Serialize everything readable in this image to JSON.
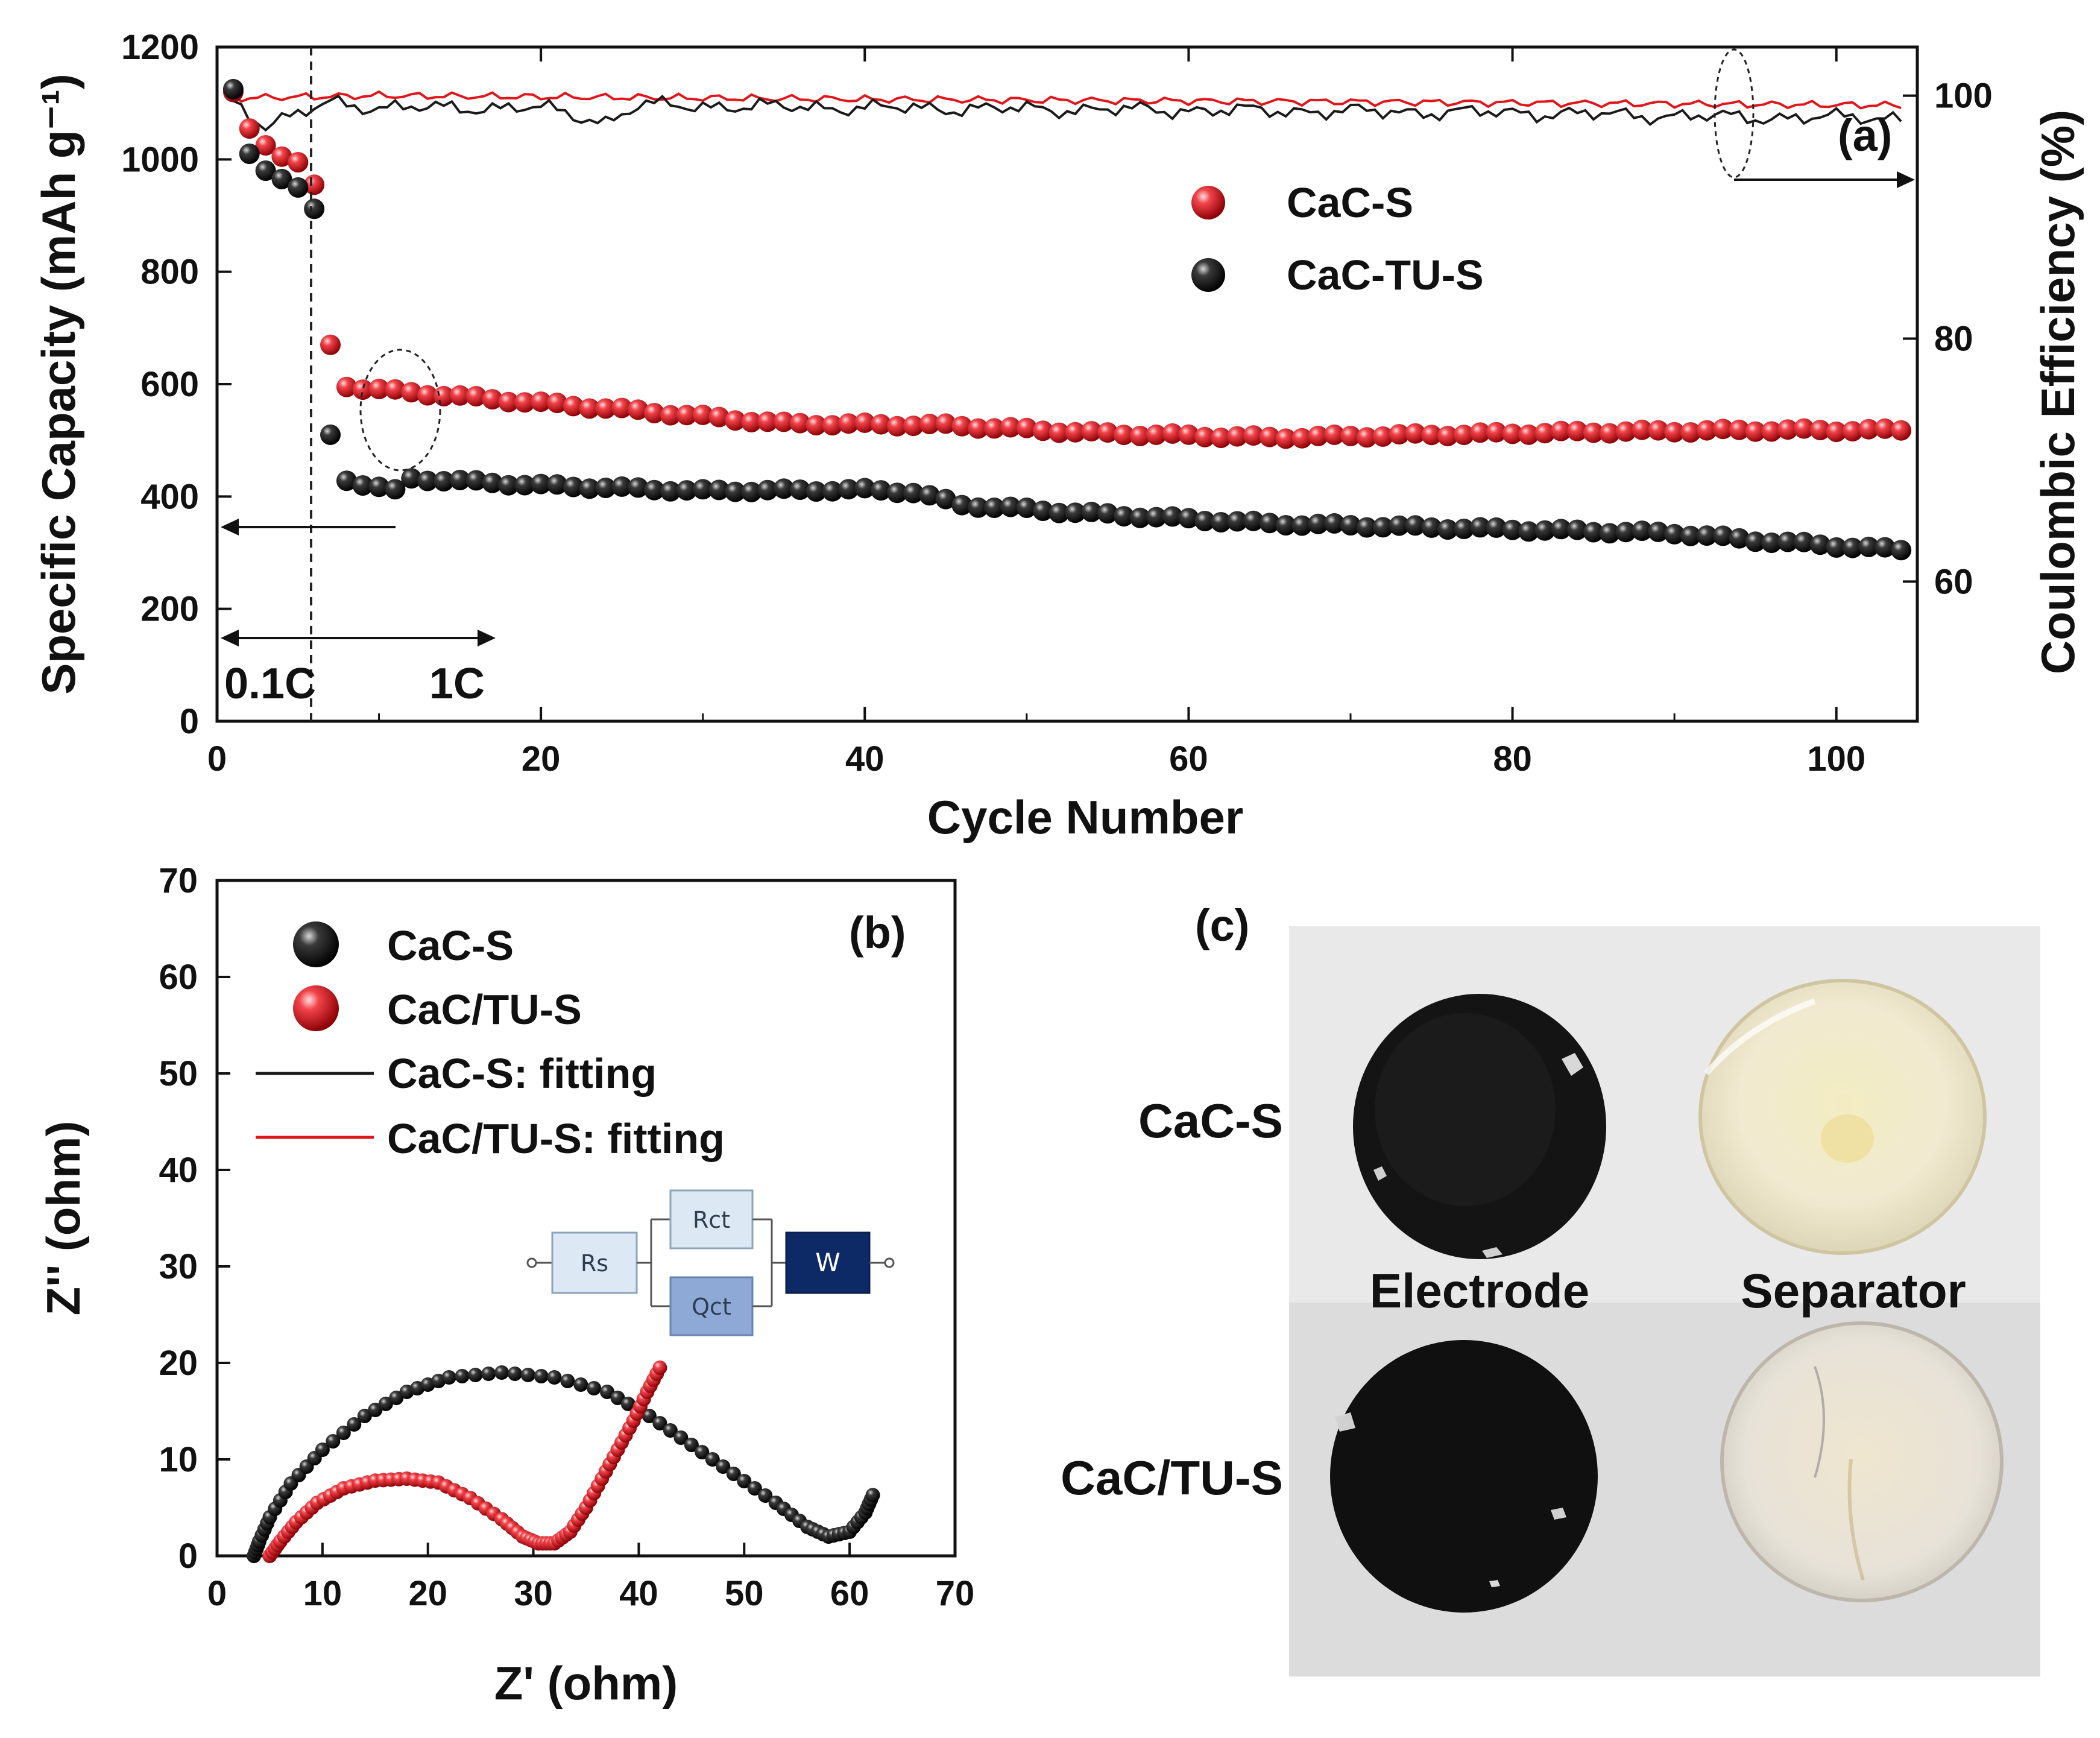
{
  "chart_data": [
    {
      "panel": "(a)",
      "type": "scatter",
      "xlabel": "Cycle Number",
      "ylabel": "Specific Capacity (mAh g⁻¹)",
      "y2label": "Coulombic Efficiency (%)",
      "xlim": [
        0,
        105
      ],
      "ylim": [
        0,
        1200
      ],
      "y2lim": [
        48.5,
        104
      ],
      "xticks": [
        "0",
        "20",
        "40",
        "60",
        "80",
        "100"
      ],
      "yticks": [
        "0",
        "200",
        "400",
        "600",
        "800",
        "1000",
        "1200"
      ],
      "y2ticks": [
        "60",
        "80",
        "100"
      ],
      "rate_labels": [
        "0.1C",
        "1C"
      ],
      "rate_switch_cycle": 6,
      "legend": {
        "position": "upper-right",
        "entries": [
          {
            "label": "CaC-S",
            "color": "#e0161b"
          },
          {
            "label": "CaC-TU-S",
            "color": "#1a1a1a"
          }
        ]
      },
      "series": [
        {
          "name": "CaC-S",
          "color": "#e0161b",
          "capacity_points": [
            [
              1,
              1120
            ],
            [
              2,
              1055
            ],
            [
              3,
              1025
            ],
            [
              4,
              1005
            ],
            [
              5,
              995
            ],
            [
              6,
              955
            ],
            [
              7,
              670
            ],
            [
              8,
              595
            ]
          ],
          "capacity_trend": [
            [
              8,
              595
            ],
            [
              15,
              578
            ],
            [
              25,
              555
            ],
            [
              35,
              530
            ],
            [
              45,
              527
            ],
            [
              55,
              512
            ],
            [
              65,
              505
            ],
            [
              75,
              510
            ],
            [
              85,
              515
            ],
            [
              95,
              518
            ],
            [
              104,
              518
            ]
          ],
          "efficiency_trend": [
            [
              1,
              99.8
            ],
            [
              10,
              100
            ],
            [
              40,
              99.7
            ],
            [
              70,
              99.5
            ],
            [
              104,
              99.2
            ]
          ]
        },
        {
          "name": "CaC-TU-S",
          "color": "#1a1a1a",
          "capacity_points": [
            [
              1,
              1125
            ],
            [
              2,
              1010
            ],
            [
              3,
              980
            ],
            [
              4,
              965
            ],
            [
              5,
              950
            ],
            [
              6,
              912
            ],
            [
              7,
              510
            ],
            [
              8,
              428
            ]
          ],
          "capacity_trend": [
            [
              8,
              428
            ],
            [
              11,
              410
            ],
            [
              12,
              432
            ],
            [
              20,
              420
            ],
            [
              30,
              410
            ],
            [
              40,
              412
            ],
            [
              43,
              408
            ],
            [
              46,
              385
            ],
            [
              55,
              368
            ],
            [
              65,
              352
            ],
            [
              75,
              345
            ],
            [
              85,
              338
            ],
            [
              90,
              335
            ],
            [
              95,
              322
            ],
            [
              100,
              312
            ],
            [
              104,
              305
            ]
          ],
          "efficiency_trend": [
            [
              1,
              99.6
            ],
            [
              3,
              97.5
            ],
            [
              5,
              98.4
            ],
            [
              7,
              99.5
            ],
            [
              10,
              99
            ],
            [
              20,
              99
            ],
            [
              24,
              97.8
            ],
            [
              26,
              99.2
            ],
            [
              40,
              99
            ],
            [
              60,
              98.8
            ],
            [
              80,
              98.6
            ],
            [
              95,
              98.2
            ],
            [
              104,
              98.2
            ]
          ]
        }
      ]
    },
    {
      "panel": "(b)",
      "type": "scatter",
      "xlabel": "Z' (ohm)",
      "ylabel": "Z'' (ohm)",
      "xlim": [
        0,
        70
      ],
      "ylim": [
        0,
        70
      ],
      "xticks": [
        "0",
        "10",
        "20",
        "30",
        "40",
        "50",
        "60",
        "70"
      ],
      "yticks": [
        "0",
        "10",
        "20",
        "30",
        "40",
        "50",
        "60",
        "70"
      ],
      "legend": {
        "position": "upper-left",
        "entries": [
          {
            "label": "CaC-S",
            "kind": "marker",
            "color": "#1a1a1a"
          },
          {
            "label": "CaC/TU-S",
            "kind": "marker",
            "color": "#e0161b"
          },
          {
            "label": "CaC-S: fitting",
            "kind": "line",
            "color": "#1a1a1a"
          },
          {
            "label": "CaC/TU-S: fitting",
            "kind": "line",
            "color": "#e0161b"
          }
        ]
      },
      "circuit": {
        "elements": [
          "Rs",
          "Rct",
          "Qct",
          "W"
        ]
      },
      "series": [
        {
          "name": "CaC-S",
          "color": "#1a1a1a",
          "points": [
            [
              3.5,
              0
            ],
            [
              4,
              1.5
            ],
            [
              5,
              4
            ],
            [
              7,
              7.5
            ],
            [
              10,
              11
            ],
            [
              14,
              14.5
            ],
            [
              18,
              17
            ],
            [
              22,
              18.5
            ],
            [
              27,
              19
            ],
            [
              32,
              18.5
            ],
            [
              37,
              17
            ],
            [
              41,
              14.5
            ],
            [
              45,
              11.5
            ],
            [
              49,
              8.5
            ],
            [
              53,
              5.5
            ],
            [
              56,
              3
            ],
            [
              58,
              2
            ],
            [
              60,
              2.5
            ],
            [
              61.5,
              4.5
            ],
            [
              62.2,
              6.3
            ]
          ]
        },
        {
          "name": "CaC/TU-S",
          "color": "#e0161b",
          "points": [
            [
              5,
              0
            ],
            [
              6,
              1.5
            ],
            [
              7.5,
              3.5
            ],
            [
              9.5,
              5.5
            ],
            [
              12,
              7
            ],
            [
              15,
              7.8
            ],
            [
              18,
              8
            ],
            [
              21,
              7.6
            ],
            [
              24,
              6
            ],
            [
              27,
              3.8
            ],
            [
              29,
              2
            ],
            [
              30.5,
              1.3
            ],
            [
              32,
              1.3
            ],
            [
              33.5,
              2.5
            ],
            [
              35,
              5
            ],
            [
              36.5,
              8
            ],
            [
              38,
              11
            ],
            [
              39.5,
              14
            ],
            [
              40.8,
              17
            ],
            [
              42,
              19.5
            ]
          ]
        }
      ]
    }
  ],
  "photo": {
    "panel": "(c)",
    "row_labels": [
      "CaC-S",
      "CaC/TU-S"
    ],
    "column_labels": [
      "Electrode",
      "Separator"
    ]
  }
}
